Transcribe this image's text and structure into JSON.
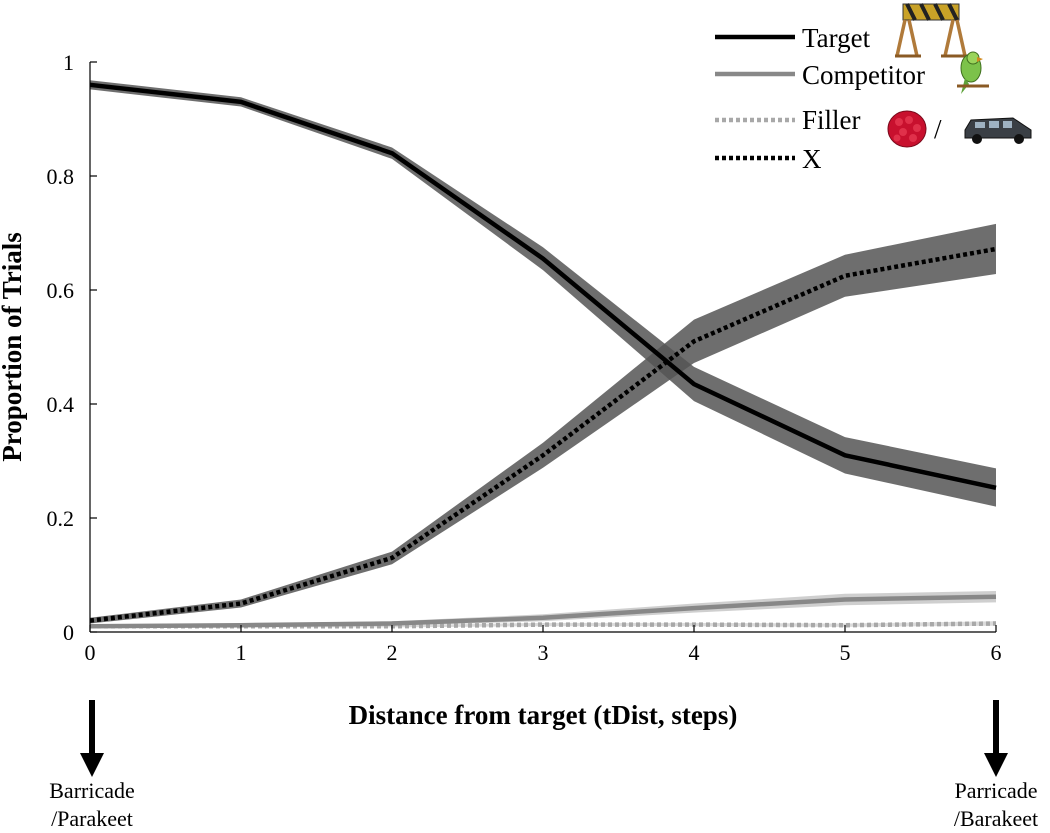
{
  "chart_data": {
    "type": "line",
    "title": "",
    "xlabel": "Distance from target (tDist, steps)",
    "ylabel": "Proportion of Trials",
    "x": [
      0,
      1,
      2,
      3,
      4,
      5,
      6
    ],
    "xlim": [
      0,
      6
    ],
    "ylim": [
      0,
      1
    ],
    "xticks": [
      "0",
      "1",
      "2",
      "3",
      "4",
      "5",
      "6"
    ],
    "yticks": [
      "0",
      "0.2",
      "0.4",
      "0.6",
      "0.8",
      "1"
    ],
    "grid": false,
    "legend_position": "top-right",
    "series": [
      {
        "name": "Target",
        "values": [
          0.96,
          0.93,
          0.84,
          0.655,
          0.435,
          0.31,
          0.253
        ],
        "lower": [
          0.952,
          0.922,
          0.83,
          0.635,
          0.405,
          0.278,
          0.22
        ],
        "upper": [
          0.968,
          0.938,
          0.85,
          0.675,
          0.465,
          0.342,
          0.287
        ],
        "color": "#000000",
        "band_color": "#555555",
        "style": "solid"
      },
      {
        "name": "Competitor",
        "values": [
          0.01,
          0.012,
          0.015,
          0.025,
          0.042,
          0.057,
          0.062
        ],
        "lower": [
          0.007,
          0.009,
          0.011,
          0.019,
          0.034,
          0.047,
          0.052
        ],
        "upper": [
          0.013,
          0.015,
          0.019,
          0.031,
          0.05,
          0.067,
          0.072
        ],
        "color": "#888888",
        "band_color": "#bbbbbb",
        "style": "solid"
      },
      {
        "name": "Filler",
        "values": [
          0.01,
          0.01,
          0.01,
          0.013,
          0.013,
          0.012,
          0.015
        ],
        "lower": [
          0.008,
          0.008,
          0.008,
          0.01,
          0.01,
          0.009,
          0.011
        ],
        "upper": [
          0.012,
          0.012,
          0.012,
          0.016,
          0.016,
          0.015,
          0.019
        ],
        "color": "#a8a8a8",
        "band_color": "#cccccc",
        "style": "dotted"
      },
      {
        "name": "X",
        "values": [
          0.02,
          0.05,
          0.13,
          0.31,
          0.51,
          0.625,
          0.672
        ],
        "lower": [
          0.015,
          0.043,
          0.119,
          0.288,
          0.472,
          0.588,
          0.628
        ],
        "upper": [
          0.025,
          0.057,
          0.141,
          0.332,
          0.548,
          0.662,
          0.716
        ],
        "color": "#000000",
        "band_color": "#555555",
        "style": "dotted"
      }
    ],
    "legend_separator": "/",
    "endpoint_labels": {
      "left": [
        "Barricade",
        "/Parakeet"
      ],
      "right": [
        "Parricade",
        "/Barakeet"
      ]
    }
  },
  "icons": {
    "target": "barricade-icon",
    "competitor": "parakeet-icon",
    "filler_1": "raspberry-icon",
    "filler_2": "limousine-icon"
  }
}
